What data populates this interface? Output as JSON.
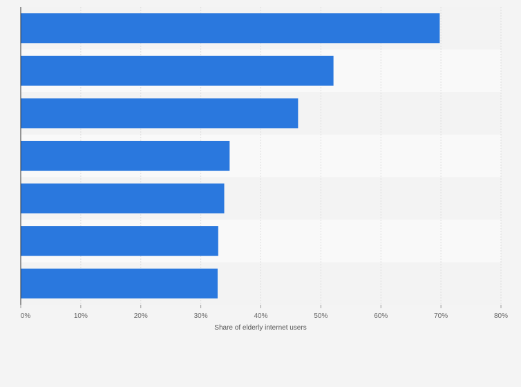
{
  "chart_data": {
    "type": "bar",
    "orientation": "horizontal",
    "title": "",
    "xlabel": "Share of elderly internet users",
    "ylabel": "",
    "xlim": [
      0,
      80
    ],
    "x_ticks": [
      0,
      10,
      20,
      30,
      40,
      50,
      60,
      70,
      80
    ],
    "x_tick_labels": [
      "0%",
      "10%",
      "20%",
      "30%",
      "40%",
      "50%",
      "60%",
      "70%",
      "80%"
    ],
    "categories": [
      "",
      "",
      "",
      "",
      "",
      "",
      ""
    ],
    "values": [
      69.8,
      52.1,
      46.2,
      34.8,
      33.9,
      32.9,
      32.8
    ],
    "value_unit": "%",
    "grid": true,
    "colors": {
      "bar": "#2a78de",
      "band_light": "#f9f9f9",
      "band_dark": "#f3f3f3",
      "grid": "#dddddd",
      "axis": "#333333",
      "background": "#f4f4f4"
    }
  }
}
